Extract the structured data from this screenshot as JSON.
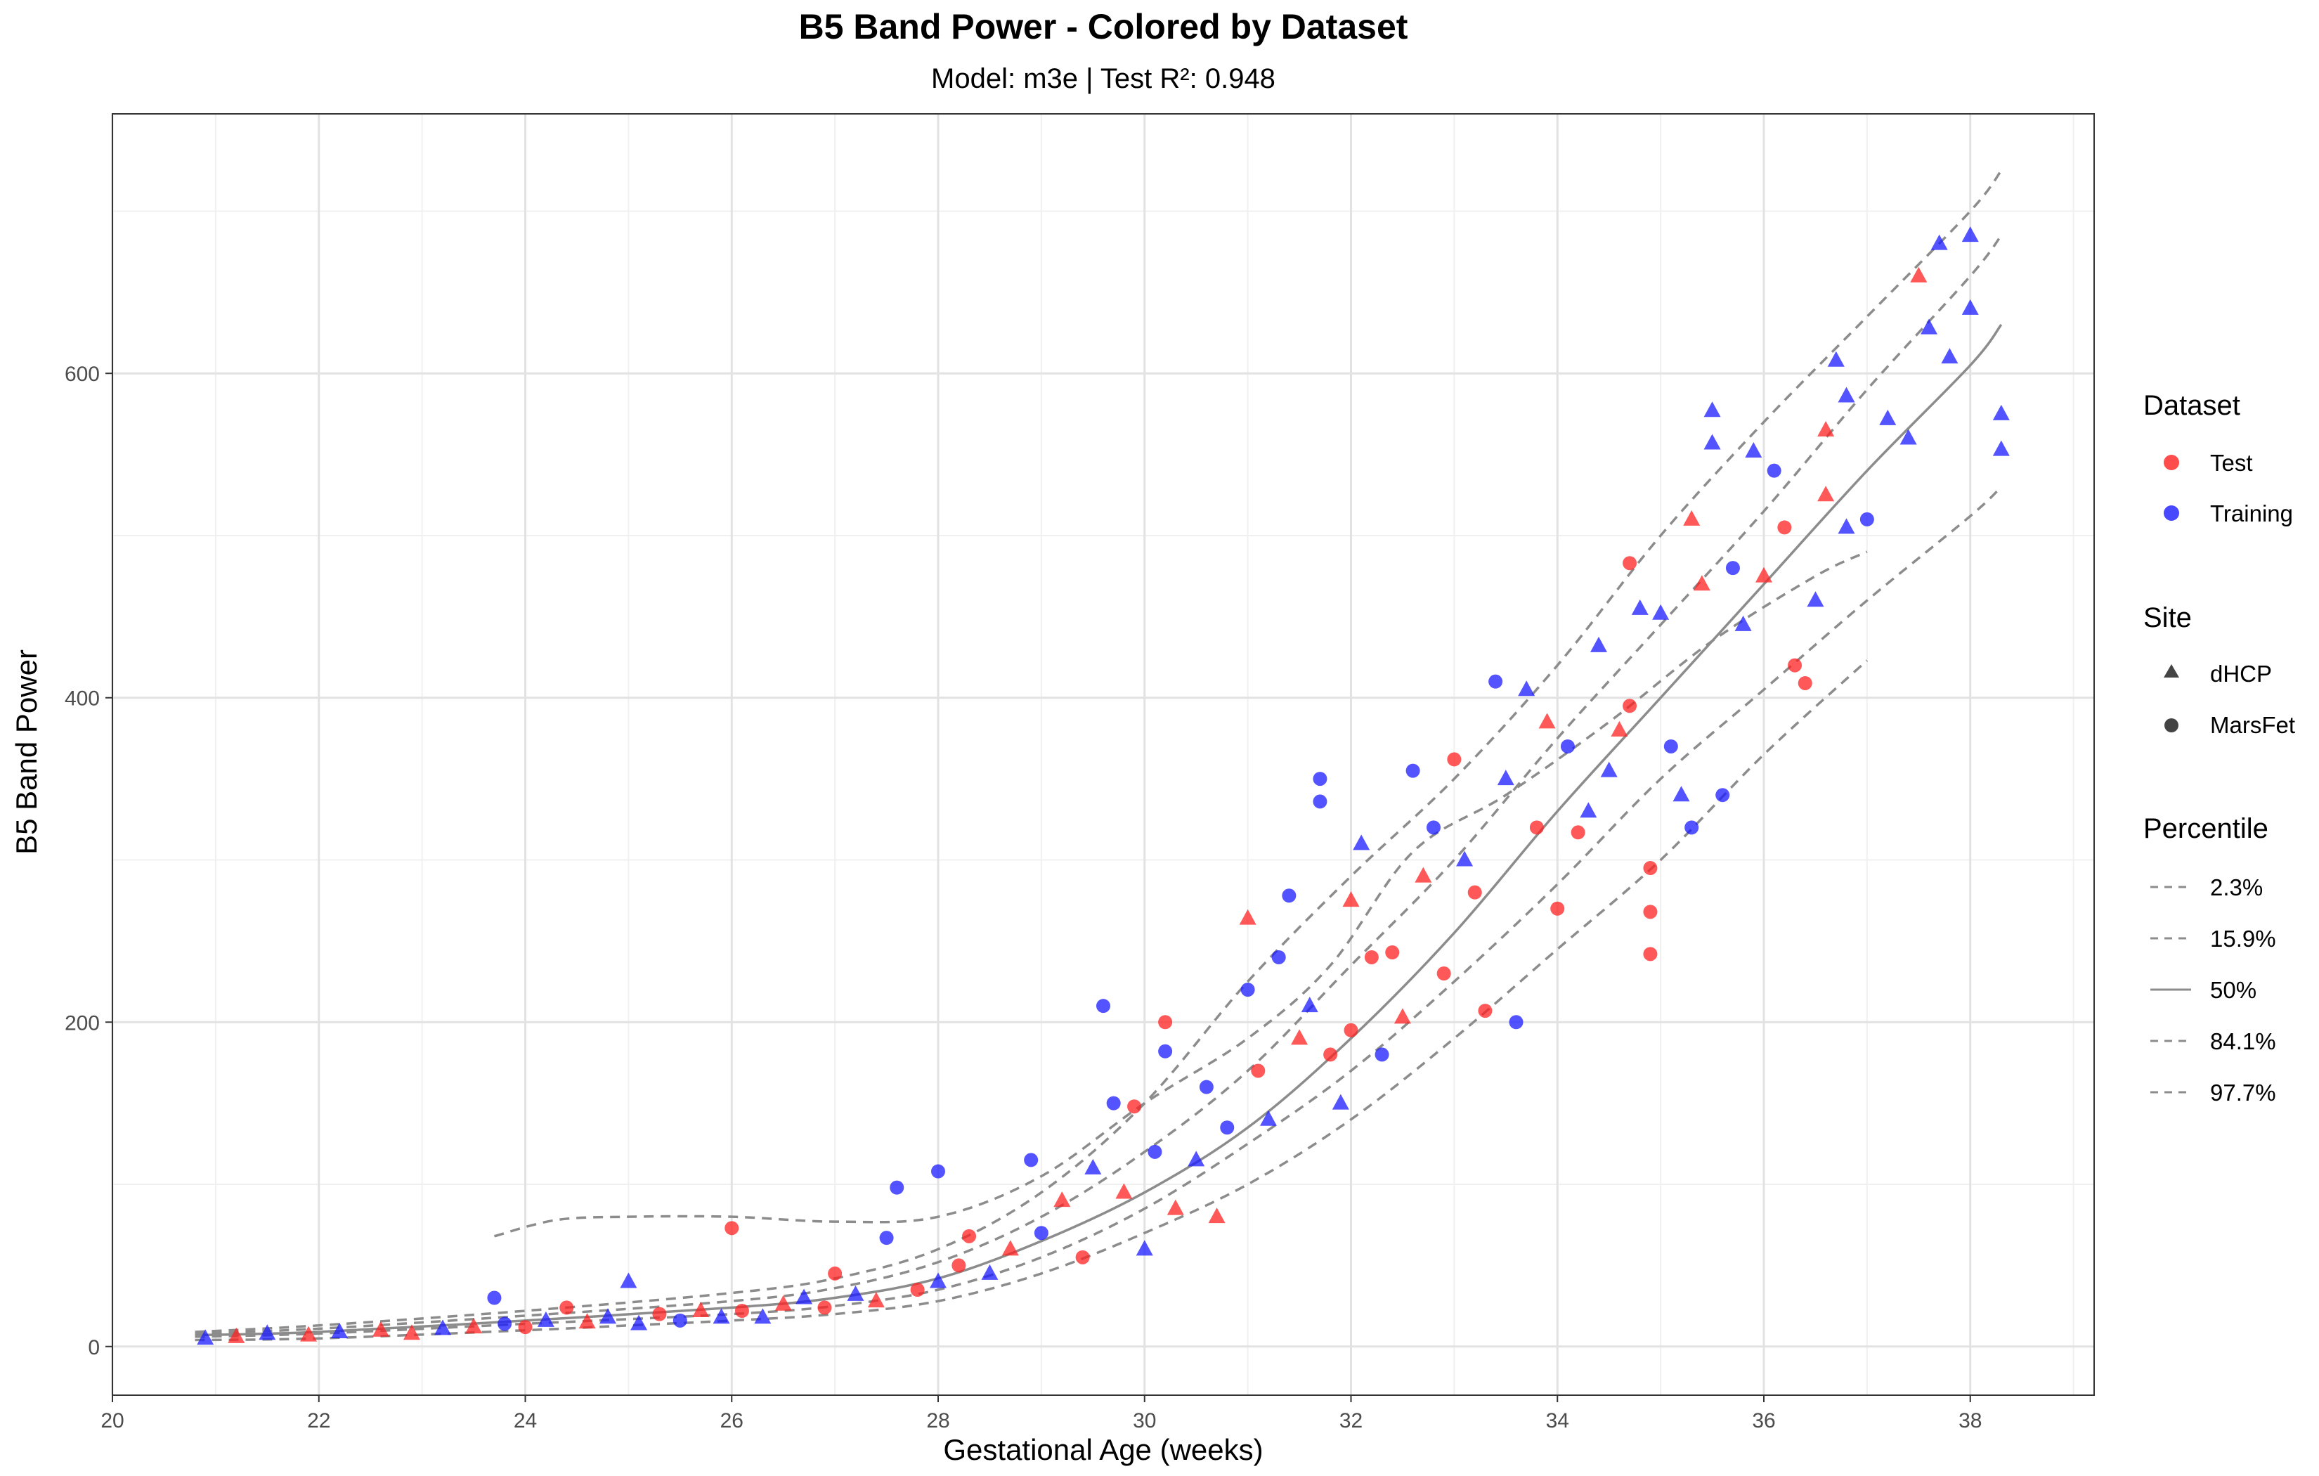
{
  "chart_data": {
    "type": "scatter",
    "title": "B5 Band Power - Colored by Dataset",
    "subtitle": "Model: m3e | Test R²: 0.948",
    "xlabel": "Gestational Age (weeks)",
    "ylabel": "B5 Band Power",
    "xlim": [
      20,
      39.2
    ],
    "ylim": [
      -30,
      760
    ],
    "x_ticks": [
      20,
      22,
      24,
      26,
      28,
      30,
      32,
      34,
      36,
      38
    ],
    "y_ticks": [
      0,
      200,
      400,
      600
    ],
    "grid": true,
    "legend_position": "right",
    "colors": {
      "Test": "#ff2020",
      "Training": "#1a1aff",
      "percentile_line": "#8c8c8c"
    },
    "legend": {
      "dataset_title": "Dataset",
      "dataset_items": [
        "Test",
        "Training"
      ],
      "site_title": "Site",
      "site_items": [
        "dHCP",
        "MarsFet"
      ],
      "percentile_title": "Percentile",
      "percentile_items": [
        "2.3%",
        "15.9%",
        "50%",
        "84.1%",
        "97.7%"
      ]
    },
    "percentile_curves": [
      {
        "name": "2.3%",
        "dashed": true,
        "x": [
          20.8,
          22,
          24,
          25,
          26,
          27,
          28,
          29,
          30,
          31,
          32,
          33,
          34,
          35,
          36,
          37
        ],
        "y": [
          4,
          5,
          10,
          13,
          16,
          20,
          28,
          45,
          70,
          100,
          140,
          190,
          245,
          300,
          365,
          423
        ]
      },
      {
        "name": "15.9%",
        "dashed": true,
        "x": [
          20.8,
          22,
          24,
          26,
          27,
          28,
          29,
          30,
          31,
          32,
          33,
          34,
          35,
          36,
          37,
          38,
          38.3
        ],
        "y": [
          6,
          8,
          14,
          20,
          25,
          35,
          55,
          85,
          125,
          170,
          225,
          285,
          350,
          405,
          460,
          512,
          530
        ]
      },
      {
        "name": "50%",
        "dashed": false,
        "x": [
          20.8,
          22,
          24,
          26,
          27,
          28,
          29,
          30,
          31,
          32,
          33,
          34,
          35,
          36,
          37,
          38,
          38.3
        ],
        "y": [
          7,
          9,
          16,
          24,
          30,
          42,
          65,
          95,
          135,
          190,
          255,
          330,
          400,
          470,
          540,
          605,
          630
        ]
      },
      {
        "name": "84.1%",
        "dashed": true,
        "x": [
          20.8,
          22,
          24,
          26,
          27,
          28,
          29,
          30,
          31,
          32,
          33,
          34,
          35,
          36,
          37,
          38,
          38.3
        ],
        "y": [
          8,
          11,
          19,
          28,
          36,
          52,
          80,
          120,
          170,
          235,
          300,
          375,
          445,
          515,
          590,
          660,
          685
        ]
      },
      {
        "name": "97.7%",
        "dashed": true,
        "x": [
          20.8,
          22,
          24,
          26,
          27,
          28,
          29,
          30,
          31,
          32,
          33,
          34,
          35,
          36,
          37,
          38,
          38.3
        ],
        "y": [
          9,
          13,
          22,
          33,
          42,
          60,
          95,
          150,
          225,
          290,
          350,
          420,
          500,
          570,
          635,
          700,
          725
        ]
      },
      {
        "name": "",
        "dashed": true,
        "x": [
          23.7,
          24.3,
          25,
          26,
          27,
          28,
          29,
          30,
          31,
          31.8,
          32.6,
          33.5,
          34.5,
          35.5,
          36.5,
          37
        ],
        "y": [
          68,
          78,
          80,
          80,
          77,
          80,
          105,
          150,
          190,
          235,
          305,
          340,
          385,
          435,
          475,
          490
        ]
      }
    ],
    "points": [
      {
        "x": 20.9,
        "y": 5,
        "d": "Training",
        "s": "dHCP"
      },
      {
        "x": 21.2,
        "y": 6,
        "d": "Test",
        "s": "dHCP"
      },
      {
        "x": 21.5,
        "y": 8,
        "d": "Training",
        "s": "dHCP"
      },
      {
        "x": 21.9,
        "y": 7,
        "d": "Test",
        "s": "dHCP"
      },
      {
        "x": 22.2,
        "y": 9,
        "d": "Training",
        "s": "dHCP"
      },
      {
        "x": 22.6,
        "y": 10,
        "d": "Test",
        "s": "dHCP"
      },
      {
        "x": 22.9,
        "y": 8,
        "d": "Test",
        "s": "dHCP"
      },
      {
        "x": 23.2,
        "y": 11,
        "d": "Training",
        "s": "dHCP"
      },
      {
        "x": 23.5,
        "y": 12,
        "d": "Test",
        "s": "dHCP"
      },
      {
        "x": 23.7,
        "y": 30,
        "d": "Training",
        "s": "MarsFet"
      },
      {
        "x": 23.8,
        "y": 14,
        "d": "Training",
        "s": "MarsFet"
      },
      {
        "x": 24.0,
        "y": 12,
        "d": "Test",
        "s": "MarsFet"
      },
      {
        "x": 24.2,
        "y": 16,
        "d": "Training",
        "s": "dHCP"
      },
      {
        "x": 24.4,
        "y": 24,
        "d": "Test",
        "s": "MarsFet"
      },
      {
        "x": 24.6,
        "y": 15,
        "d": "Test",
        "s": "dHCP"
      },
      {
        "x": 24.8,
        "y": 18,
        "d": "Training",
        "s": "dHCP"
      },
      {
        "x": 25.0,
        "y": 40,
        "d": "Training",
        "s": "dHCP"
      },
      {
        "x": 25.1,
        "y": 14,
        "d": "Training",
        "s": "dHCP"
      },
      {
        "x": 25.3,
        "y": 20,
        "d": "Test",
        "s": "MarsFet"
      },
      {
        "x": 25.5,
        "y": 16,
        "d": "Training",
        "s": "MarsFet"
      },
      {
        "x": 25.7,
        "y": 22,
        "d": "Test",
        "s": "dHCP"
      },
      {
        "x": 25.9,
        "y": 18,
        "d": "Training",
        "s": "dHCP"
      },
      {
        "x": 26.0,
        "y": 73,
        "d": "Test",
        "s": "MarsFet"
      },
      {
        "x": 26.1,
        "y": 22,
        "d": "Test",
        "s": "MarsFet"
      },
      {
        "x": 26.3,
        "y": 18,
        "d": "Training",
        "s": "dHCP"
      },
      {
        "x": 26.5,
        "y": 26,
        "d": "Test",
        "s": "dHCP"
      },
      {
        "x": 26.7,
        "y": 30,
        "d": "Training",
        "s": "dHCP"
      },
      {
        "x": 26.9,
        "y": 24,
        "d": "Test",
        "s": "MarsFet"
      },
      {
        "x": 27.0,
        "y": 45,
        "d": "Test",
        "s": "MarsFet"
      },
      {
        "x": 27.2,
        "y": 32,
        "d": "Training",
        "s": "dHCP"
      },
      {
        "x": 27.4,
        "y": 28,
        "d": "Test",
        "s": "dHCP"
      },
      {
        "x": 27.5,
        "y": 67,
        "d": "Training",
        "s": "MarsFet"
      },
      {
        "x": 27.6,
        "y": 98,
        "d": "Training",
        "s": "MarsFet"
      },
      {
        "x": 27.8,
        "y": 35,
        "d": "Test",
        "s": "MarsFet"
      },
      {
        "x": 28.0,
        "y": 108,
        "d": "Training",
        "s": "MarsFet"
      },
      {
        "x": 28.0,
        "y": 40,
        "d": "Training",
        "s": "dHCP"
      },
      {
        "x": 28.2,
        "y": 50,
        "d": "Test",
        "s": "MarsFet"
      },
      {
        "x": 28.3,
        "y": 68,
        "d": "Test",
        "s": "MarsFet"
      },
      {
        "x": 28.5,
        "y": 45,
        "d": "Training",
        "s": "dHCP"
      },
      {
        "x": 28.7,
        "y": 60,
        "d": "Test",
        "s": "dHCP"
      },
      {
        "x": 28.9,
        "y": 115,
        "d": "Training",
        "s": "MarsFet"
      },
      {
        "x": 29.0,
        "y": 70,
        "d": "Training",
        "s": "MarsFet"
      },
      {
        "x": 29.2,
        "y": 90,
        "d": "Test",
        "s": "dHCP"
      },
      {
        "x": 29.4,
        "y": 55,
        "d": "Test",
        "s": "MarsFet"
      },
      {
        "x": 29.5,
        "y": 110,
        "d": "Training",
        "s": "dHCP"
      },
      {
        "x": 29.6,
        "y": 210,
        "d": "Training",
        "s": "MarsFet"
      },
      {
        "x": 29.7,
        "y": 150,
        "d": "Training",
        "s": "MarsFet"
      },
      {
        "x": 29.8,
        "y": 95,
        "d": "Test",
        "s": "dHCP"
      },
      {
        "x": 29.9,
        "y": 148,
        "d": "Test",
        "s": "MarsFet"
      },
      {
        "x": 30.0,
        "y": 60,
        "d": "Training",
        "s": "dHCP"
      },
      {
        "x": 30.1,
        "y": 120,
        "d": "Training",
        "s": "MarsFet"
      },
      {
        "x": 30.2,
        "y": 200,
        "d": "Test",
        "s": "MarsFet"
      },
      {
        "x": 30.2,
        "y": 182,
        "d": "Training",
        "s": "MarsFet"
      },
      {
        "x": 30.3,
        "y": 85,
        "d": "Test",
        "s": "dHCP"
      },
      {
        "x": 30.5,
        "y": 115,
        "d": "Training",
        "s": "dHCP"
      },
      {
        "x": 30.6,
        "y": 160,
        "d": "Training",
        "s": "MarsFet"
      },
      {
        "x": 30.7,
        "y": 80,
        "d": "Test",
        "s": "dHCP"
      },
      {
        "x": 30.8,
        "y": 135,
        "d": "Training",
        "s": "MarsFet"
      },
      {
        "x": 31.0,
        "y": 264,
        "d": "Test",
        "s": "dHCP"
      },
      {
        "x": 31.0,
        "y": 220,
        "d": "Training",
        "s": "MarsFet"
      },
      {
        "x": 31.1,
        "y": 170,
        "d": "Test",
        "s": "MarsFet"
      },
      {
        "x": 31.2,
        "y": 140,
        "d": "Training",
        "s": "dHCP"
      },
      {
        "x": 31.3,
        "y": 240,
        "d": "Training",
        "s": "MarsFet"
      },
      {
        "x": 31.4,
        "y": 278,
        "d": "Training",
        "s": "MarsFet"
      },
      {
        "x": 31.5,
        "y": 190,
        "d": "Test",
        "s": "dHCP"
      },
      {
        "x": 31.6,
        "y": 210,
        "d": "Training",
        "s": "dHCP"
      },
      {
        "x": 31.7,
        "y": 350,
        "d": "Training",
        "s": "MarsFet"
      },
      {
        "x": 31.7,
        "y": 336,
        "d": "Training",
        "s": "MarsFet"
      },
      {
        "x": 31.8,
        "y": 180,
        "d": "Test",
        "s": "MarsFet"
      },
      {
        "x": 31.9,
        "y": 150,
        "d": "Training",
        "s": "dHCP"
      },
      {
        "x": 32.0,
        "y": 195,
        "d": "Test",
        "s": "MarsFet"
      },
      {
        "x": 32.0,
        "y": 275,
        "d": "Test",
        "s": "dHCP"
      },
      {
        "x": 32.1,
        "y": 310,
        "d": "Training",
        "s": "dHCP"
      },
      {
        "x": 32.2,
        "y": 240,
        "d": "Test",
        "s": "MarsFet"
      },
      {
        "x": 32.3,
        "y": 180,
        "d": "Training",
        "s": "MarsFet"
      },
      {
        "x": 32.4,
        "y": 243,
        "d": "Test",
        "s": "MarsFet"
      },
      {
        "x": 32.5,
        "y": 203,
        "d": "Test",
        "s": "dHCP"
      },
      {
        "x": 32.6,
        "y": 355,
        "d": "Training",
        "s": "MarsFet"
      },
      {
        "x": 32.7,
        "y": 290,
        "d": "Test",
        "s": "dHCP"
      },
      {
        "x": 32.8,
        "y": 320,
        "d": "Training",
        "s": "MarsFet"
      },
      {
        "x": 32.9,
        "y": 230,
        "d": "Test",
        "s": "MarsFet"
      },
      {
        "x": 33.0,
        "y": 362,
        "d": "Test",
        "s": "MarsFet"
      },
      {
        "x": 33.1,
        "y": 300,
        "d": "Training",
        "s": "dHCP"
      },
      {
        "x": 33.2,
        "y": 280,
        "d": "Test",
        "s": "MarsFet"
      },
      {
        "x": 33.3,
        "y": 207,
        "d": "Test",
        "s": "MarsFet"
      },
      {
        "x": 33.4,
        "y": 410,
        "d": "Training",
        "s": "MarsFet"
      },
      {
        "x": 33.5,
        "y": 350,
        "d": "Training",
        "s": "dHCP"
      },
      {
        "x": 33.6,
        "y": 200,
        "d": "Training",
        "s": "MarsFet"
      },
      {
        "x": 33.7,
        "y": 405,
        "d": "Training",
        "s": "dHCP"
      },
      {
        "x": 33.8,
        "y": 320,
        "d": "Test",
        "s": "MarsFet"
      },
      {
        "x": 33.9,
        "y": 385,
        "d": "Test",
        "s": "dHCP"
      },
      {
        "x": 34.0,
        "y": 270,
        "d": "Test",
        "s": "MarsFet"
      },
      {
        "x": 34.1,
        "y": 370,
        "d": "Training",
        "s": "MarsFet"
      },
      {
        "x": 34.2,
        "y": 317,
        "d": "Test",
        "s": "MarsFet"
      },
      {
        "x": 34.3,
        "y": 330,
        "d": "Training",
        "s": "dHCP"
      },
      {
        "x": 34.4,
        "y": 432,
        "d": "Training",
        "s": "dHCP"
      },
      {
        "x": 34.5,
        "y": 355,
        "d": "Training",
        "s": "dHCP"
      },
      {
        "x": 34.6,
        "y": 380,
        "d": "Test",
        "s": "dHCP"
      },
      {
        "x": 34.7,
        "y": 483,
        "d": "Test",
        "s": "MarsFet"
      },
      {
        "x": 34.7,
        "y": 395,
        "d": "Test",
        "s": "MarsFet"
      },
      {
        "x": 34.8,
        "y": 455,
        "d": "Training",
        "s": "dHCP"
      },
      {
        "x": 34.9,
        "y": 295,
        "d": "Test",
        "s": "MarsFet"
      },
      {
        "x": 34.9,
        "y": 268,
        "d": "Test",
        "s": "MarsFet"
      },
      {
        "x": 34.9,
        "y": 242,
        "d": "Test",
        "s": "MarsFet"
      },
      {
        "x": 35.0,
        "y": 452,
        "d": "Training",
        "s": "dHCP"
      },
      {
        "x": 35.1,
        "y": 370,
        "d": "Training",
        "s": "MarsFet"
      },
      {
        "x": 35.2,
        "y": 340,
        "d": "Training",
        "s": "dHCP"
      },
      {
        "x": 35.3,
        "y": 320,
        "d": "Training",
        "s": "MarsFet"
      },
      {
        "x": 35.3,
        "y": 510,
        "d": "Test",
        "s": "dHCP"
      },
      {
        "x": 35.4,
        "y": 470,
        "d": "Test",
        "s": "dHCP"
      },
      {
        "x": 35.5,
        "y": 577,
        "d": "Training",
        "s": "dHCP"
      },
      {
        "x": 35.5,
        "y": 557,
        "d": "Training",
        "s": "dHCP"
      },
      {
        "x": 35.6,
        "y": 340,
        "d": "Training",
        "s": "MarsFet"
      },
      {
        "x": 35.7,
        "y": 480,
        "d": "Training",
        "s": "MarsFet"
      },
      {
        "x": 35.8,
        "y": 445,
        "d": "Training",
        "s": "dHCP"
      },
      {
        "x": 35.9,
        "y": 552,
        "d": "Training",
        "s": "dHCP"
      },
      {
        "x": 36.0,
        "y": 475,
        "d": "Test",
        "s": "dHCP"
      },
      {
        "x": 36.1,
        "y": 540,
        "d": "Training",
        "s": "MarsFet"
      },
      {
        "x": 36.2,
        "y": 505,
        "d": "Test",
        "s": "MarsFet"
      },
      {
        "x": 36.3,
        "y": 420,
        "d": "Test",
        "s": "MarsFet"
      },
      {
        "x": 36.4,
        "y": 409,
        "d": "Test",
        "s": "MarsFet"
      },
      {
        "x": 36.5,
        "y": 460,
        "d": "Training",
        "s": "dHCP"
      },
      {
        "x": 36.6,
        "y": 565,
        "d": "Test",
        "s": "dHCP"
      },
      {
        "x": 36.6,
        "y": 525,
        "d": "Test",
        "s": "dHCP"
      },
      {
        "x": 36.7,
        "y": 608,
        "d": "Training",
        "s": "dHCP"
      },
      {
        "x": 36.8,
        "y": 586,
        "d": "Training",
        "s": "dHCP"
      },
      {
        "x": 36.8,
        "y": 505,
        "d": "Training",
        "s": "dHCP"
      },
      {
        "x": 37.0,
        "y": 510,
        "d": "Training",
        "s": "MarsFet"
      },
      {
        "x": 37.2,
        "y": 572,
        "d": "Training",
        "s": "dHCP"
      },
      {
        "x": 37.4,
        "y": 560,
        "d": "Training",
        "s": "dHCP"
      },
      {
        "x": 37.5,
        "y": 660,
        "d": "Test",
        "s": "dHCP"
      },
      {
        "x": 37.6,
        "y": 628,
        "d": "Training",
        "s": "dHCP"
      },
      {
        "x": 37.7,
        "y": 680,
        "d": "Training",
        "s": "dHCP"
      },
      {
        "x": 37.8,
        "y": 610,
        "d": "Training",
        "s": "dHCP"
      },
      {
        "x": 38.0,
        "y": 685,
        "d": "Training",
        "s": "dHCP"
      },
      {
        "x": 38.0,
        "y": 640,
        "d": "Training",
        "s": "dHCP"
      },
      {
        "x": 38.3,
        "y": 575,
        "d": "Training",
        "s": "dHCP"
      },
      {
        "x": 38.3,
        "y": 553,
        "d": "Training",
        "s": "dHCP"
      }
    ]
  }
}
